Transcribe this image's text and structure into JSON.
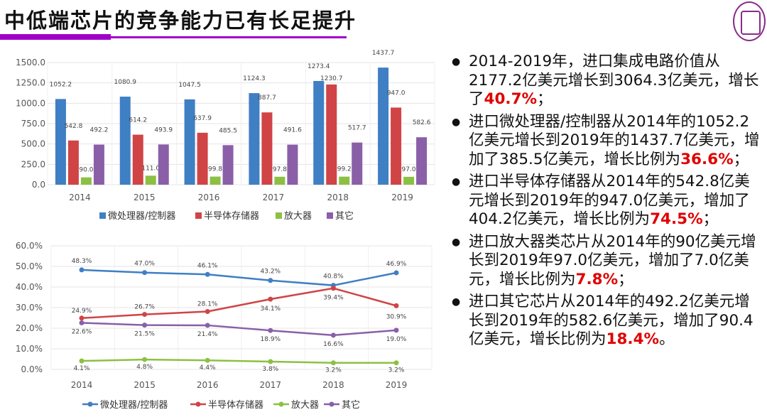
{
  "slide": {
    "title": "中低端芯片的竞争能力已有长足提升",
    "accent": "#a000c8"
  },
  "bullets": [
    {
      "pre": "2014-2019年，进口集成电路价值从2177.2亿美元增长到3064.3亿美元，增长了",
      "hl": "40.7%",
      "post": "；"
    },
    {
      "pre": "进口微处理器/控制器从2014年的1052.2亿美元增长到2019年的1437.7亿美元，增加了385.5亿美元，增长比例为",
      "hl": "36.6%",
      "post": "；"
    },
    {
      "pre": "进口半导体存储器从2014年的542.8亿美元增长到2019年的947.0亿美元，增加了404.2亿美元，增长比例为",
      "hl": "74.5%",
      "post": "；"
    },
    {
      "pre": "进口放大器类芯片从2014年的90亿美元增长到2019年97.0亿美元，增加了7.0亿美元，增长比例为",
      "hl": "7.8%",
      "post": "；"
    },
    {
      "pre": "进口其它芯片从2014年的492.2亿美元增长到2019年的582.6亿美元，增加了90.4亿美元，增长比例为",
      "hl": "18.4%",
      "post": "。"
    }
  ],
  "chart_data": [
    {
      "type": "bar",
      "categories": [
        "2014",
        "2015",
        "2016",
        "2017",
        "2018",
        "2019"
      ],
      "ylim": [
        0,
        1500
      ],
      "yticks": [
        "0.0",
        "250.0",
        "500.0",
        "750.0",
        "1000.0",
        "1250.0",
        "1500.0"
      ],
      "grid": true,
      "legend": "bottom",
      "series": [
        {
          "name": "微处理器/控制器",
          "color": "#3f7fc4",
          "values": [
            1052.2,
            1080.9,
            1047.5,
            1124.3,
            1273.4,
            1437.7
          ],
          "labels": [
            "1052.2",
            "1080.9",
            "1047.5",
            "1124.3",
            "1273.4",
            "1437.7"
          ]
        },
        {
          "name": "半导体存储器",
          "color": "#d04446",
          "values": [
            542.8,
            614.2,
            637.9,
            887.7,
            1230.7,
            947.0
          ],
          "labels": [
            "542.8",
            "614.2",
            "637.9",
            "887.7",
            "1230.7",
            "947.0"
          ]
        },
        {
          "name": "放大器",
          "color": "#8cc044",
          "values": [
            90.0,
            111.0,
            99.8,
            97.8,
            99.2,
            97.0
          ],
          "labels": [
            "90.0",
            "111.0",
            "99.8",
            "97.8",
            "99.2",
            "97.0"
          ]
        },
        {
          "name": "其它",
          "color": "#8a5fa8",
          "values": [
            492.2,
            493.9,
            485.5,
            491.6,
            517.7,
            582.6
          ],
          "labels": [
            "492.2",
            "493.9",
            "485.5",
            "491.6",
            "517.7",
            "582.6"
          ]
        }
      ]
    },
    {
      "type": "line",
      "categories": [
        "2014",
        "2015",
        "2016",
        "2017",
        "2018",
        "2019"
      ],
      "ylim": [
        0,
        60
      ],
      "yticks": [
        "0.0%",
        "10.0%",
        "20.0%",
        "30.0%",
        "40.0%",
        "50.0%",
        "60.0%"
      ],
      "grid": true,
      "legend": "bottom",
      "series": [
        {
          "name": "微处理器/控制器",
          "color": "#3f7fc4",
          "values": [
            48.3,
            47.0,
            46.1,
            43.2,
            40.8,
            46.9
          ],
          "labels": [
            "48.3%",
            "47.0%",
            "46.1%",
            "43.2%",
            "40.8%",
            "46.9%"
          ]
        },
        {
          "name": "半导体存储器",
          "color": "#d04446",
          "values": [
            24.9,
            26.7,
            28.1,
            34.1,
            39.4,
            30.9
          ],
          "labels": [
            "24.9%",
            "26.7%",
            "28.1%",
            "34.1%",
            "39.4%",
            "30.9%"
          ]
        },
        {
          "name": "放大器",
          "color": "#8cc044",
          "values": [
            4.1,
            4.8,
            4.4,
            3.8,
            3.2,
            3.2
          ],
          "labels": [
            "4.1%",
            "4.8%",
            "4.4%",
            "3.8%",
            "3.2%",
            "3.2%"
          ]
        },
        {
          "name": "其它",
          "color": "#8a5fa8",
          "values": [
            22.6,
            21.5,
            21.4,
            18.9,
            16.6,
            19.0
          ],
          "labels": [
            "22.6%",
            "21.5%",
            "21.4%",
            "18.9%",
            "16.6%",
            "19.0%"
          ]
        }
      ]
    }
  ]
}
